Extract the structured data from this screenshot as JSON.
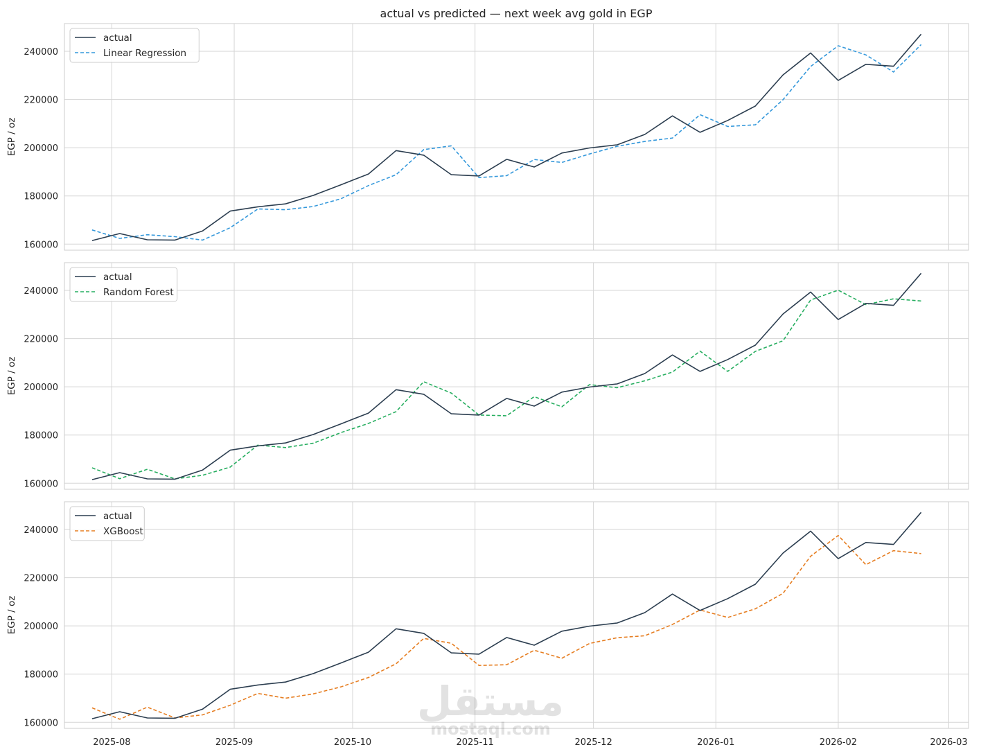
{
  "chart_data": {
    "type": "line",
    "title": "actual vs predicted — next week avg gold in EGP",
    "x": [
      "2025-07-27",
      "2025-08-03",
      "2025-08-10",
      "2025-08-17",
      "2025-08-24",
      "2025-08-31",
      "2025-09-07",
      "2025-09-14",
      "2025-09-21",
      "2025-09-28",
      "2025-10-05",
      "2025-10-12",
      "2025-10-19",
      "2025-10-26",
      "2025-11-02",
      "2025-11-09",
      "2025-11-16",
      "2025-11-23",
      "2025-11-30",
      "2025-12-07",
      "2025-12-14",
      "2025-12-21",
      "2025-12-28",
      "2026-01-04",
      "2026-01-11",
      "2026-01-18",
      "2026-01-25",
      "2026-02-01",
      "2026-02-08",
      "2026-02-15",
      "2026-02-22"
    ],
    "xlim": [
      "2025-07-20",
      "2026-03-06"
    ],
    "xticks": [
      "2025-08",
      "2025-09",
      "2025-10",
      "2025-11",
      "2025-12",
      "2026-01",
      "2026-02",
      "2026-03"
    ],
    "xtick_dates": [
      "2025-08-01",
      "2025-09-01",
      "2025-10-01",
      "2025-11-01",
      "2025-12-01",
      "2026-01-01",
      "2026-02-01",
      "2026-03-01"
    ],
    "actual": [
      161500,
      164400,
      161800,
      161700,
      165500,
      173700,
      175500,
      176700,
      180200,
      184600,
      189100,
      198800,
      196900,
      188800,
      188300,
      195200,
      192000,
      197800,
      199900,
      201200,
      205500,
      213200,
      206400,
      211300,
      217300,
      230200,
      239300,
      227900,
      234600,
      233800,
      247100
    ],
    "panels": [
      {
        "ylabel": "EGP / oz",
        "ylim": [
          157500,
          251500
        ],
        "yticks": [
          160000,
          180000,
          200000,
          220000,
          240000
        ],
        "ytick_labels": [
          "160000",
          "180000",
          "200000",
          "220000",
          "240000"
        ],
        "series": [
          {
            "name": "actual",
            "color": "#2c3e50",
            "style": "solid"
          },
          {
            "name": "Linear Regression",
            "color": "#3498db",
            "style": "dashed",
            "values": [
              165900,
              162400,
              163900,
              163100,
              161700,
              166800,
              174600,
              174300,
              175600,
              178800,
              184300,
              188800,
              199200,
              200800,
              187600,
              188400,
              195100,
              193900,
              197400,
              200600,
              202600,
              204000,
              213700,
              208800,
              209500,
              219900,
              233700,
              242300,
              238500,
              231400,
              242800
            ]
          }
        ]
      },
      {
        "ylabel": "EGP / oz",
        "ylim": [
          157500,
          251500
        ],
        "yticks": [
          160000,
          180000,
          200000,
          220000,
          240000
        ],
        "ytick_labels": [
          "160000",
          "180000",
          "200000",
          "220000",
          "240000"
        ],
        "series": [
          {
            "name": "actual",
            "color": "#2c3e50",
            "style": "solid"
          },
          {
            "name": "Random Forest",
            "color": "#27ae60",
            "style": "dashed",
            "values": [
              166400,
              161900,
              165800,
              161800,
              163300,
              166700,
              175800,
              174800,
              176600,
              181000,
              184800,
              189700,
              202100,
              197400,
              188300,
              188000,
              195900,
              191700,
              200900,
              199600,
              202500,
              206100,
              214800,
              206400,
              214700,
              219100,
              236000,
              240100,
              234100,
              236500,
              235600
            ]
          }
        ]
      },
      {
        "ylabel": "EGP / oz",
        "ylim": [
          157500,
          251500
        ],
        "yticks": [
          160000,
          180000,
          200000,
          220000,
          240000
        ],
        "ytick_labels": [
          "160000",
          "180000",
          "200000",
          "220000",
          "240000"
        ],
        "series": [
          {
            "name": "actual",
            "color": "#2c3e50",
            "style": "solid"
          },
          {
            "name": "XGBoost",
            "color": "#e67e22",
            "style": "dashed",
            "values": [
              166000,
              161300,
              166300,
              161800,
              163100,
              167100,
              172000,
              170000,
              171800,
              174700,
              178600,
              184300,
              194800,
              192800,
              183600,
              183900,
              189900,
              186600,
              192700,
              195100,
              195900,
              200600,
              206600,
              203500,
              207100,
              213500,
              228900,
              237500,
              225400,
              231200,
              230000
            ]
          }
        ]
      }
    ]
  },
  "watermark": {
    "arabic": "مستقل",
    "latin": "mostaql.com"
  },
  "colors": {
    "grid": "#d5d5d5",
    "axes": "#cccccc",
    "text": "#262626"
  }
}
